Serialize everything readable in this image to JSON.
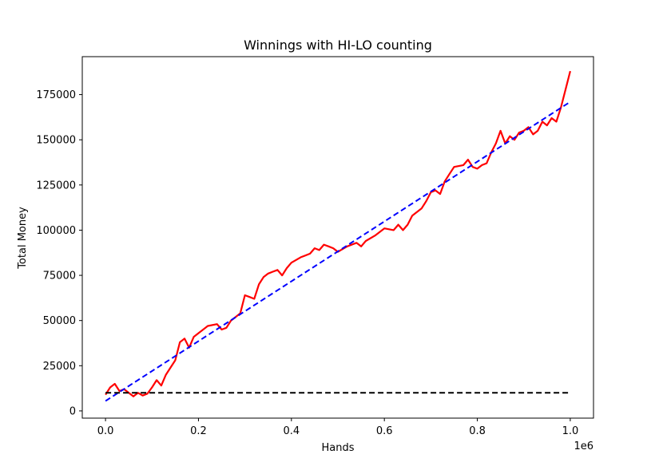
{
  "chart_data": {
    "type": "line",
    "title": "Winnings with HI-LO counting",
    "xlabel": "Hands",
    "ylabel": "Total Money",
    "x_offset_label": "1e6",
    "xlim": [
      -0.05,
      1.05
    ],
    "ylim": [
      -4000,
      196000
    ],
    "x_ticks": [
      0.0,
      0.2,
      0.4,
      0.6,
      0.8,
      1.0
    ],
    "x_tick_labels": [
      "0.0",
      "0.2",
      "0.4",
      "0.6",
      "0.8",
      "1.0"
    ],
    "y_ticks": [
      0,
      25000,
      50000,
      75000,
      100000,
      125000,
      150000,
      175000
    ],
    "y_tick_labels": [
      "0",
      "25000",
      "50000",
      "75000",
      "100000",
      "125000",
      "150000",
      "175000"
    ],
    "grid": false,
    "series": [
      {
        "color": "#ff0000",
        "style": "solid",
        "x": [
          0.0,
          0.01,
          0.02,
          0.03,
          0.04,
          0.05,
          0.06,
          0.07,
          0.08,
          0.09,
          0.1,
          0.11,
          0.12,
          0.13,
          0.14,
          0.15,
          0.16,
          0.17,
          0.18,
          0.19,
          0.2,
          0.22,
          0.24,
          0.25,
          0.26,
          0.27,
          0.28,
          0.29,
          0.3,
          0.31,
          0.32,
          0.33,
          0.34,
          0.35,
          0.36,
          0.37,
          0.38,
          0.39,
          0.4,
          0.42,
          0.44,
          0.45,
          0.46,
          0.47,
          0.48,
          0.49,
          0.5,
          0.52,
          0.54,
          0.55,
          0.56,
          0.58,
          0.6,
          0.62,
          0.63,
          0.64,
          0.65,
          0.66,
          0.67,
          0.68,
          0.69,
          0.7,
          0.71,
          0.72,
          0.73,
          0.74,
          0.75,
          0.77,
          0.78,
          0.79,
          0.8,
          0.81,
          0.82,
          0.83,
          0.84,
          0.85,
          0.86,
          0.87,
          0.88,
          0.89,
          0.9,
          0.91,
          0.92,
          0.93,
          0.94,
          0.95,
          0.96,
          0.97,
          0.98,
          0.99,
          1.0
        ],
        "y": [
          9000,
          13000,
          15000,
          11000,
          12000,
          10000,
          8000,
          10000,
          8500,
          9500,
          13000,
          17000,
          14000,
          20000,
          24000,
          28000,
          38000,
          40000,
          35000,
          41000,
          43000,
          47000,
          48000,
          45000,
          46000,
          50000,
          52000,
          54000,
          64000,
          63000,
          62000,
          70000,
          74000,
          76000,
          77000,
          78000,
          75000,
          79000,
          82000,
          85000,
          87000,
          90000,
          89000,
          92000,
          91000,
          90000,
          88000,
          91000,
          93000,
          91000,
          94000,
          97000,
          101000,
          100000,
          103000,
          100000,
          103000,
          108000,
          110000,
          112000,
          116000,
          121000,
          122000,
          120000,
          127000,
          131000,
          135000,
          136000,
          139000,
          135000,
          134000,
          136000,
          137000,
          143000,
          148000,
          155000,
          148000,
          152000,
          150000,
          154000,
          155000,
          157000,
          153000,
          155000,
          160000,
          158000,
          162000,
          160000,
          168000,
          178000,
          188000
        ]
      },
      {
        "color": "#0000ff",
        "style": "dashed",
        "x": [
          0.0,
          1.0
        ],
        "y": [
          5500,
          171000
        ]
      },
      {
        "color": "#000000",
        "style": "dashed",
        "x": [
          0.0,
          1.0
        ],
        "y": [
          10000,
          10000
        ]
      }
    ]
  }
}
